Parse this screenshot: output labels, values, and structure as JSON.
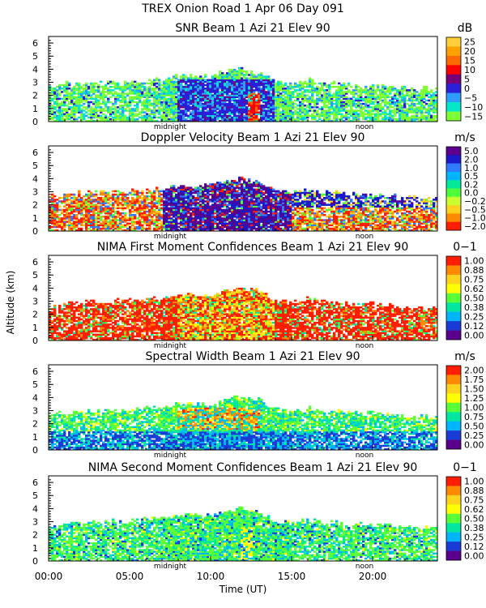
{
  "header": {
    "title": "TREX Onion Road    1 Apr 06 Day 091"
  },
  "axes": {
    "ylabel": "Altitude (km)",
    "xlabel": "Time (UT)",
    "time_ticks": [
      "00:00",
      "05:00",
      "10:00",
      "15:00",
      "20:00"
    ],
    "altitude_ticks": [
      "0",
      "1",
      "2",
      "3",
      "4",
      "5",
      "6"
    ],
    "midnight_label": "midnight",
    "noon_label": "noon"
  },
  "chart_data": [
    {
      "type": "heatmap",
      "title": "SNR Beam 1 Azi  21 Elev 90",
      "units": "dB",
      "xlabel": "Time (UT)",
      "ylabel": "Altitude (km)",
      "xlim": [
        0,
        24
      ],
      "ylim": [
        0,
        6.5
      ],
      "colorbar": {
        "labels": [
          "25",
          "20",
          "15",
          "10",
          "5",
          "0",
          "−5",
          "−10",
          "−15"
        ],
        "colors": [
          "#ffcf3a",
          "#ffa200",
          "#ff6a00",
          "#ff0000",
          "#780078",
          "#2a1fd6",
          "#2e9bff",
          "#00e8c8",
          "#7dff35"
        ]
      }
    },
    {
      "type": "heatmap",
      "title": "Doppler Velocity Beam 1 Azi  21 Elev 90",
      "units": "m/s",
      "xlabel": "Time (UT)",
      "ylabel": "Altitude (km)",
      "xlim": [
        0,
        24
      ],
      "ylim": [
        0,
        6.5
      ],
      "colorbar": {
        "labels": [
          "5.0",
          "2.0",
          "1.0",
          "0.5",
          "0.2",
          "0.0",
          "−0.2",
          "−0.5",
          "−1.0",
          "−2.0"
        ],
        "colors": [
          "#5a008c",
          "#1a1ac8",
          "#2e7bff",
          "#00b4ff",
          "#00e89a",
          "#4cff3a",
          "#c8ff2c",
          "#ffd21e",
          "#ff8a00",
          "#ff1e00"
        ]
      }
    },
    {
      "type": "heatmap",
      "title": "NIMA First Moment Confidences Beam 1 Azi  21 Elev 90",
      "units": "0−1",
      "xlabel": "Time (UT)",
      "ylabel": "Altitude (km)",
      "xlim": [
        0,
        24
      ],
      "ylim": [
        0,
        6.5
      ],
      "colorbar": {
        "labels": [
          "1.00",
          "0.88",
          "0.75",
          "0.62",
          "0.50",
          "0.38",
          "0.25",
          "0.12",
          "0.00"
        ],
        "colors": [
          "#ff1e00",
          "#ff8a00",
          "#ffd21e",
          "#ffff00",
          "#5aff3a",
          "#00e8a0",
          "#00b4ff",
          "#1a3cd6",
          "#5a008c"
        ]
      }
    },
    {
      "type": "heatmap",
      "title": "Spectral Width Beam 1 Azi  21 Elev 90",
      "units": "m/s",
      "xlabel": "Time (UT)",
      "ylabel": "Altitude (km)",
      "xlim": [
        0,
        24
      ],
      "ylim": [
        0,
        6.5
      ],
      "colorbar": {
        "labels": [
          "2.00",
          "1.75",
          "1.50",
          "1.25",
          "1.00",
          "0.75",
          "0.50",
          "0.25",
          "0.00"
        ],
        "colors": [
          "#ff1e00",
          "#ff8a00",
          "#ffd21e",
          "#ffff00",
          "#5aff3a",
          "#00e8a0",
          "#00b4ff",
          "#1a3cd6",
          "#5a008c"
        ]
      }
    },
    {
      "type": "heatmap",
      "title": "NIMA Second Moment Confidences Beam 1 Azi  21 Elev 90",
      "units": "0−1",
      "xlabel": "Time (UT)",
      "ylabel": "Altitude (km)",
      "xlim": [
        0,
        24
      ],
      "ylim": [
        0,
        6.5
      ],
      "colorbar": {
        "labels": [
          "1.00",
          "0.88",
          "0.75",
          "0.62",
          "0.50",
          "0.38",
          "0.25",
          "0.12",
          "0.00"
        ],
        "colors": [
          "#ff1e00",
          "#ff8a00",
          "#ffd21e",
          "#ffff00",
          "#5aff3a",
          "#00e8a0",
          "#00b4ff",
          "#1a3cd6",
          "#5a008c"
        ]
      }
    }
  ]
}
